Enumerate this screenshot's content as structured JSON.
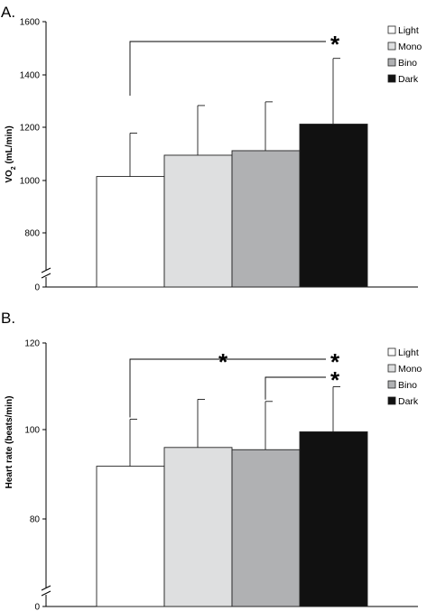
{
  "colors": {
    "Light": "#ffffff",
    "Mono": "#dedfe0",
    "Bino": "#b0b1b3",
    "Dark": "#111111"
  },
  "chart_data": [
    {
      "type": "bar",
      "panel_label": "A.",
      "categories": [
        "Light",
        "Mono",
        "Bino",
        "Dark"
      ],
      "values": [
        1015,
        1095,
        1112,
        1212
      ],
      "error": [
        163,
        188,
        185,
        250
      ],
      "ylabel": "VO",
      "ylabel_sub": "2",
      "ylabel_rest": " (mL/min)",
      "ylim": [
        0,
        1600
      ],
      "axis_break": true,
      "ticks": [
        0,
        800,
        1000,
        1200,
        1400,
        1600
      ],
      "tick_labels": [
        "0",
        "800",
        "1000",
        "1200",
        "1400",
        "1600"
      ],
      "legend": [
        "Light",
        "Mono",
        "Bino",
        "Dark"
      ],
      "legend_position": "top-right",
      "grid": false,
      "annotations": [
        {
          "from": "Light",
          "to": "Dark",
          "level": 1540,
          "marks": [
            "*"
          ]
        }
      ]
    },
    {
      "type": "bar",
      "panel_label": "B.",
      "categories": [
        "Light",
        "Mono",
        "Bino",
        "Dark"
      ],
      "values": [
        91.8,
        96.0,
        95.5,
        99.5
      ],
      "error": [
        10.6,
        11.0,
        11.0,
        10.4
      ],
      "ylabel": "Heart rate (beats/min)",
      "ylim": [
        0,
        120
      ],
      "axis_break": true,
      "ticks": [
        0,
        80,
        100,
        120
      ],
      "tick_labels": [
        "0",
        "80",
        "100",
        "120"
      ],
      "legend": [
        "Light",
        "Mono",
        "Bino",
        "Dark"
      ],
      "legend_position": "top-right",
      "grid": false,
      "annotations": [
        {
          "from": "Light",
          "to": "Dark",
          "level": 115.3,
          "marks": [
            "*",
            "*"
          ]
        },
        {
          "from": "Bino",
          "to": "Dark",
          "level": 111.3,
          "marks": [
            "*"
          ]
        }
      ]
    }
  ]
}
